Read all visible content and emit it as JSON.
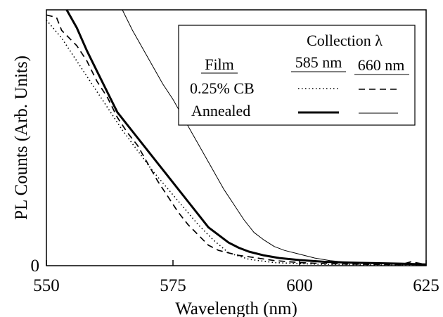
{
  "chart_data": {
    "type": "line",
    "xlabel": "Wavelength (nm)",
    "ylabel": "PL Counts (Arb. Units)",
    "xlim": [
      550,
      625
    ],
    "ylim": [
      0,
      1
    ],
    "x_ticks": [
      "550",
      "575",
      "600",
      "625"
    ],
    "y_ticks": [
      "0"
    ],
    "grid": false,
    "legend": {
      "placement": "top-right",
      "title": "Collection λ",
      "row_header": "Film",
      "col_headers": [
        "585 nm",
        "660 nm"
      ],
      "rows": [
        "0.25% CB",
        "Annealed"
      ]
    },
    "series": [
      {
        "film": "0.25% CB",
        "collection": "585 nm",
        "style": "dotted",
        "points": [
          [
            550,
            0.96
          ],
          [
            553,
            0.89
          ],
          [
            556,
            0.8
          ],
          [
            559,
            0.71
          ],
          [
            562,
            0.62
          ],
          [
            565,
            0.53
          ],
          [
            568,
            0.45
          ],
          [
            571,
            0.37
          ],
          [
            574,
            0.3
          ],
          [
            577,
            0.23
          ],
          [
            580,
            0.16
          ],
          [
            583,
            0.1
          ],
          [
            586,
            0.05
          ],
          [
            590,
            0.025
          ],
          [
            595,
            0.012
          ],
          [
            600,
            0.008
          ],
          [
            605,
            0.005
          ],
          [
            610,
            0.004
          ],
          [
            615,
            0.003
          ],
          [
            620,
            0.002
          ],
          [
            625,
            0.002
          ]
        ]
      },
      {
        "film": "0.25% CB",
        "collection": "660 nm",
        "style": "dashed",
        "points": [
          [
            550,
            0.98
          ],
          [
            552,
            0.97
          ],
          [
            553,
            0.92
          ],
          [
            555,
            0.88
          ],
          [
            556,
            0.86
          ],
          [
            558,
            0.8
          ],
          [
            560,
            0.72
          ],
          [
            562,
            0.66
          ],
          [
            564,
            0.58
          ],
          [
            566,
            0.52
          ],
          [
            568,
            0.47
          ],
          [
            570,
            0.4
          ],
          [
            572,
            0.33
          ],
          [
            574,
            0.27
          ],
          [
            576,
            0.21
          ],
          [
            578,
            0.16
          ],
          [
            580,
            0.12
          ],
          [
            582,
            0.08
          ],
          [
            584,
            0.06
          ],
          [
            586,
            0.05
          ],
          [
            588,
            0.04
          ],
          [
            590,
            0.035
          ],
          [
            595,
            0.02
          ],
          [
            600,
            0.012
          ],
          [
            605,
            0.008
          ],
          [
            610,
            0.006
          ],
          [
            615,
            0.005
          ],
          [
            620,
            0.004
          ],
          [
            622,
            0.015
          ],
          [
            625,
            0.005
          ]
        ]
      },
      {
        "film": "Annealed",
        "collection": "585 nm",
        "style": "solid-thick",
        "points": [
          [
            554,
            1.0
          ],
          [
            556,
            0.93
          ],
          [
            558,
            0.84
          ],
          [
            560,
            0.76
          ],
          [
            562,
            0.68
          ],
          [
            564,
            0.6
          ],
          [
            566,
            0.55
          ],
          [
            568,
            0.5
          ],
          [
            570,
            0.45
          ],
          [
            572,
            0.4
          ],
          [
            574,
            0.35
          ],
          [
            576,
            0.3
          ],
          [
            578,
            0.25
          ],
          [
            580,
            0.2
          ],
          [
            582,
            0.15
          ],
          [
            584,
            0.12
          ],
          [
            586,
            0.09
          ],
          [
            588,
            0.07
          ],
          [
            590,
            0.055
          ],
          [
            593,
            0.04
          ],
          [
            596,
            0.03
          ],
          [
            600,
            0.022
          ],
          [
            605,
            0.015
          ],
          [
            610,
            0.012
          ],
          [
            615,
            0.01
          ],
          [
            620,
            0.008
          ],
          [
            625,
            0.005
          ]
        ]
      },
      {
        "film": "Annealed",
        "collection": "660 nm",
        "style": "solid-thin",
        "points": [
          [
            565,
            1.0
          ],
          [
            567,
            0.92
          ],
          [
            569,
            0.85
          ],
          [
            571,
            0.78
          ],
          [
            573,
            0.71
          ],
          [
            575,
            0.65
          ],
          [
            577,
            0.58
          ],
          [
            579,
            0.51
          ],
          [
            581,
            0.44
          ],
          [
            583,
            0.37
          ],
          [
            585,
            0.3
          ],
          [
            587,
            0.24
          ],
          [
            589,
            0.18
          ],
          [
            591,
            0.13
          ],
          [
            593,
            0.1
          ],
          [
            595,
            0.075
          ],
          [
            597,
            0.06
          ],
          [
            600,
            0.045
          ],
          [
            603,
            0.03
          ],
          [
            606,
            0.02
          ],
          [
            610,
            0.012
          ],
          [
            615,
            0.008
          ],
          [
            620,
            0.005
          ],
          [
            625,
            0.003
          ]
        ]
      }
    ]
  }
}
